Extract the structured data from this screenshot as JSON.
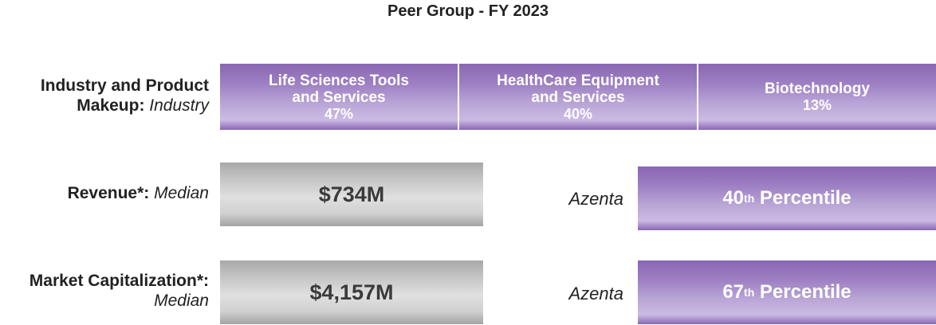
{
  "title": "Peer Group - FY 2023",
  "industry": {
    "label_bold": "Industry and Product",
    "label_bold2": "Makeup:",
    "label_italic": "Industry",
    "segments": [
      {
        "name_line1": "Life Sciences Tools",
        "name_line2": "and Services",
        "pct": "47%",
        "share": 47
      },
      {
        "name_line1": "HealthCare Equipment",
        "name_line2": "and Services",
        "pct": "40%",
        "share": 40
      },
      {
        "name_line1": "Biotechnology",
        "name_line2": "",
        "pct": "13%",
        "share": 13
      }
    ]
  },
  "revenue": {
    "label_bold": "Revenue*:",
    "label_italic": "Median",
    "median_value": "$734M",
    "company": "Azenta",
    "percentile_num": "40",
    "percentile_suffix": "th",
    "percentile_word": "Percentile"
  },
  "market_cap": {
    "label_bold": "Market Capitalization*:",
    "label_italic": "Median",
    "median_value": "$4,157M",
    "company": "Azenta",
    "percentile_num": "67",
    "percentile_suffix": "th",
    "percentile_word": "Percentile"
  },
  "colors": {
    "purple": "#8a66b3",
    "purple_light": "#cbbbe3",
    "grey": "#c4c4c4",
    "text": "#222222"
  }
}
